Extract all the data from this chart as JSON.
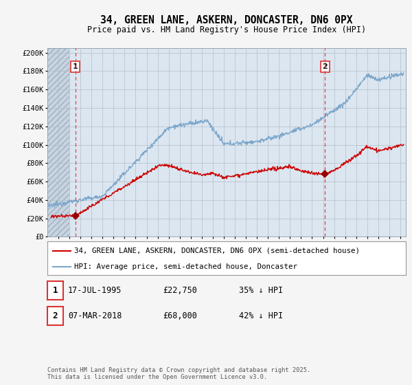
{
  "title": "34, GREEN LANE, ASKERN, DONCASTER, DN6 0PX",
  "subtitle": "Price paid vs. HM Land Registry's House Price Index (HPI)",
  "ylabel_ticks": [
    "£0",
    "£20K",
    "£40K",
    "£60K",
    "£80K",
    "£100K",
    "£120K",
    "£140K",
    "£160K",
    "£180K",
    "£200K"
  ],
  "ytick_values": [
    0,
    20000,
    40000,
    60000,
    80000,
    100000,
    120000,
    140000,
    160000,
    180000,
    200000
  ],
  "ylim": [
    0,
    205000
  ],
  "xlim_start": 1993.0,
  "xlim_end": 2025.5,
  "sale1_x": 1995.54,
  "sale1_y": 22750,
  "sale2_x": 2018.18,
  "sale2_y": 68000,
  "ann_y": 185000,
  "legend_red": "34, GREEN LANE, ASKERN, DONCASTER, DN6 0PX (semi-detached house)",
  "legend_blue": "HPI: Average price, semi-detached house, Doncaster",
  "note1_label": "1",
  "note1_date": "17-JUL-1995",
  "note1_price": "£22,750",
  "note1_hpi": "35% ↓ HPI",
  "note2_label": "2",
  "note2_date": "07-MAR-2018",
  "note2_price": "£68,000",
  "note2_hpi": "42% ↓ HPI",
  "copyright": "Contains HM Land Registry data © Crown copyright and database right 2025.\nThis data is licensed under the Open Government Licence v3.0.",
  "bg_color": "#e8eef5",
  "plot_bg_color": "#dce6f0",
  "hatch_bg": "#c8d4e0",
  "red_color": "#cc0000",
  "blue_color": "#7ba7cc",
  "vline_color": "#dd4444",
  "marker_color": "#990000",
  "ann_box_color": "#dd3333",
  "grid_color": "#b0bec8",
  "spine_color": "#8899aa"
}
